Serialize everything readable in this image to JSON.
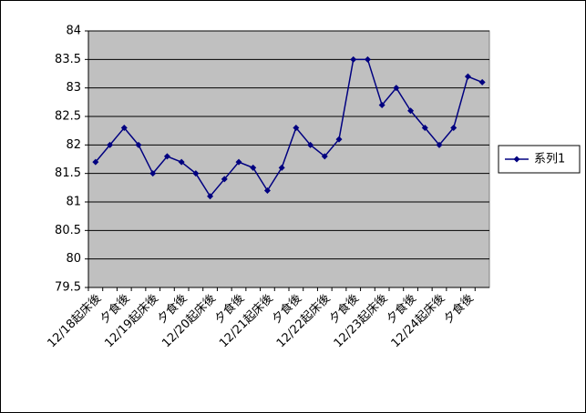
{
  "chart_data": {
    "type": "line",
    "categories": [
      "12/18起床後",
      null,
      "夕食後",
      null,
      "12/19起床後",
      null,
      "夕食後",
      null,
      "12/20起床後",
      null,
      "夕食後",
      null,
      "12/21起床後",
      null,
      "夕食後",
      null,
      "12/22起床後",
      null,
      "夕食後",
      null,
      "12/23起床後",
      null,
      "夕食後",
      null,
      "12/24起床後",
      null,
      "夕食後",
      null
    ],
    "series": [
      {
        "name": "系列1",
        "color": "#000080",
        "values": [
          81.7,
          82.0,
          82.3,
          82.0,
          81.5,
          81.8,
          81.7,
          81.5,
          81.1,
          81.4,
          81.7,
          81.6,
          81.2,
          81.6,
          82.3,
          82.0,
          81.8,
          82.1,
          83.5,
          83.5,
          82.7,
          83.0,
          82.6,
          82.3,
          82.0,
          82.3,
          83.2,
          83.1
        ]
      }
    ],
    "ylim": [
      79.5,
      84
    ],
    "yticks": [
      79.5,
      80,
      80.5,
      81,
      81.5,
      82,
      82.5,
      83,
      83.5,
      84
    ],
    "grid": true,
    "legend": "right",
    "plot_background": "#c0c0c0"
  }
}
